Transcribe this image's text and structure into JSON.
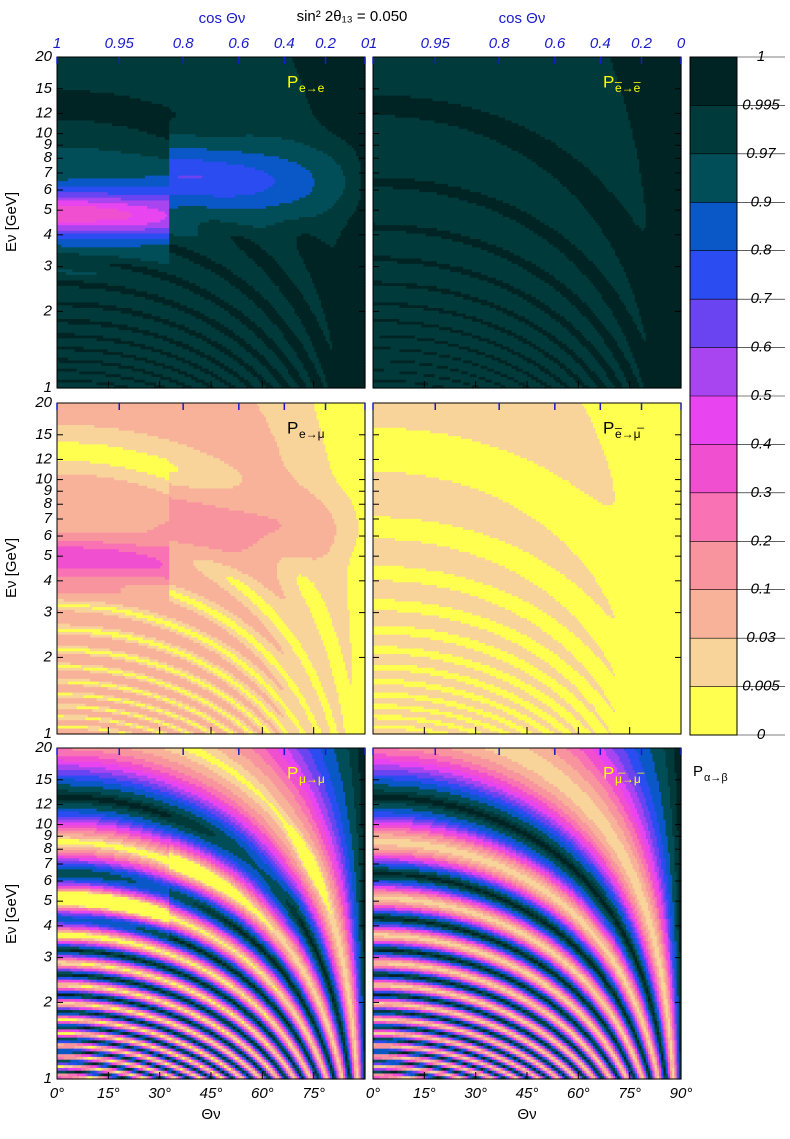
{
  "chart_data": {
    "type": "contour",
    "title": "sin² 2θ₁₃ = 0.050",
    "top_axis_label": "cos Θν",
    "top_ticks": [
      1,
      0.95,
      0.8,
      0.6,
      0.4,
      0.2,
      0
    ],
    "top_color": "#1a1acc",
    "xlabel": "Θν",
    "xlim": [
      0,
      90
    ],
    "xticks_left": [
      {
        "value": 0,
        "label": "0°"
      },
      {
        "value": 15,
        "label": "15°"
      },
      {
        "value": 30,
        "label": "30°"
      },
      {
        "value": 45,
        "label": "45°"
      },
      {
        "value": 60,
        "label": "60°"
      },
      {
        "value": 75,
        "label": "75°"
      }
    ],
    "xticks_right": [
      {
        "value": 0,
        "label": "0°"
      },
      {
        "value": 15,
        "label": "15°"
      },
      {
        "value": 30,
        "label": "30°"
      },
      {
        "value": 45,
        "label": "45°"
      },
      {
        "value": 60,
        "label": "60°"
      },
      {
        "value": 75,
        "label": "75°"
      },
      {
        "value": 90,
        "label": "90°"
      }
    ],
    "ylabel": "Eν [GeV]",
    "ylog": true,
    "ylim": [
      1,
      20
    ],
    "yticks": [
      1,
      2,
      3,
      4,
      5,
      6,
      7,
      8,
      9,
      10,
      12,
      15,
      20
    ],
    "panels": [
      {
        "label": "P",
        "channel": "e→e",
        "label_color": "#ffff00"
      },
      {
        "label": "P",
        "channel": "e̅→e̅",
        "label_color": "#ffff00"
      },
      {
        "label": "P",
        "channel": "e→μ",
        "label_color": "#000000"
      },
      {
        "label": "P",
        "channel": "e̅→μ̅",
        "label_color": "#000000"
      },
      {
        "label": "P",
        "channel": "μ→μ",
        "label_color": "#ffff00"
      },
      {
        "label": "P",
        "channel": "μ̅→μ̅",
        "label_color": "#ffff00"
      }
    ],
    "colorbar": {
      "label": "P",
      "channel": "α→β",
      "levels": [
        1,
        0.995,
        0.97,
        0.9,
        0.8,
        0.7,
        0.6,
        0.5,
        0.4,
        0.3,
        0.2,
        0.1,
        0.03,
        0.005,
        0
      ],
      "colors": [
        "#002424",
        "#003a3a",
        "#024e58",
        "#0a58c8",
        "#2a4cf0",
        "#6a44f0",
        "#a844f0",
        "#e844f0",
        "#f050d0",
        "#f872b4",
        "#f8949e",
        "#f8b29a",
        "#f8d49a",
        "#ffff50"
      ]
    }
  }
}
